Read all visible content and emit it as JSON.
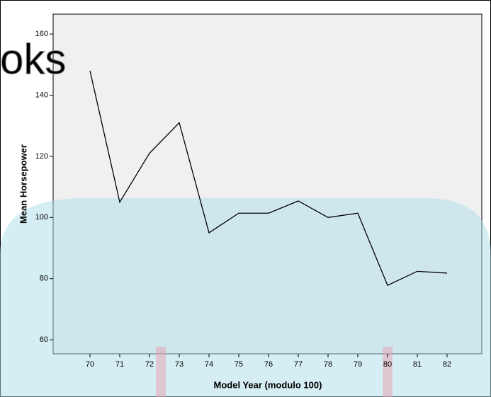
{
  "chart_data": {
    "type": "line",
    "watermark": "oks",
    "x_label": "Model Year (modulo 100)",
    "y_label": "Mean Horsepower",
    "categories": [
      "70",
      "71",
      "72",
      "73",
      "74",
      "75",
      "76",
      "77",
      "78",
      "79",
      "80",
      "81",
      "82"
    ],
    "values": [
      148,
      105,
      121,
      131,
      95,
      101.4,
      101.4,
      105.4,
      100,
      101.4,
      77.8,
      82.4,
      81.8
    ],
    "color": "#000000",
    "ylim": [
      55.4,
      166.5
    ],
    "yticks": [
      60,
      80,
      100,
      120,
      140,
      160
    ]
  }
}
